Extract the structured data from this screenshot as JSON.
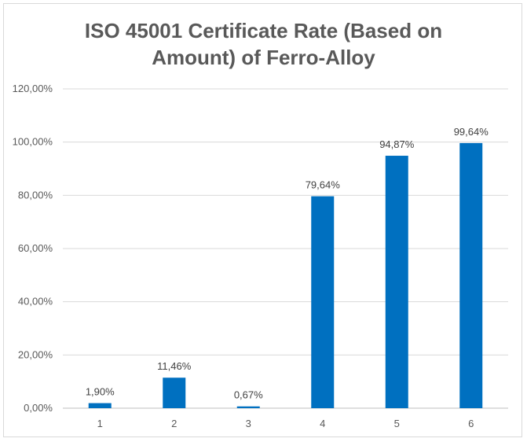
{
  "chart_data": {
    "type": "bar",
    "title_lines": [
      "ISO 45001 Certificate Rate (Based on",
      "Amount) of Ferro-Alloy"
    ],
    "categories": [
      "1",
      "2",
      "3",
      "4",
      "5",
      "6"
    ],
    "values": [
      1.9,
      11.46,
      0.67,
      79.64,
      94.87,
      99.64
    ],
    "data_labels": [
      "1,90%",
      "11,46%",
      "0,67%",
      "79,64%",
      "94,87%",
      "99,64%"
    ],
    "xlabel": "",
    "ylabel": "",
    "ylim": [
      0,
      120
    ],
    "yticks": [
      0,
      20,
      40,
      60,
      80,
      100,
      120
    ],
    "ytick_labels": [
      "0,00%",
      "20,00%",
      "40,00%",
      "60,00%",
      "80,00%",
      "100,00%",
      "120,00%"
    ],
    "grid": true,
    "legend": "none",
    "bar_color": "#0070c0",
    "grid_color": "#d9d9d9"
  }
}
